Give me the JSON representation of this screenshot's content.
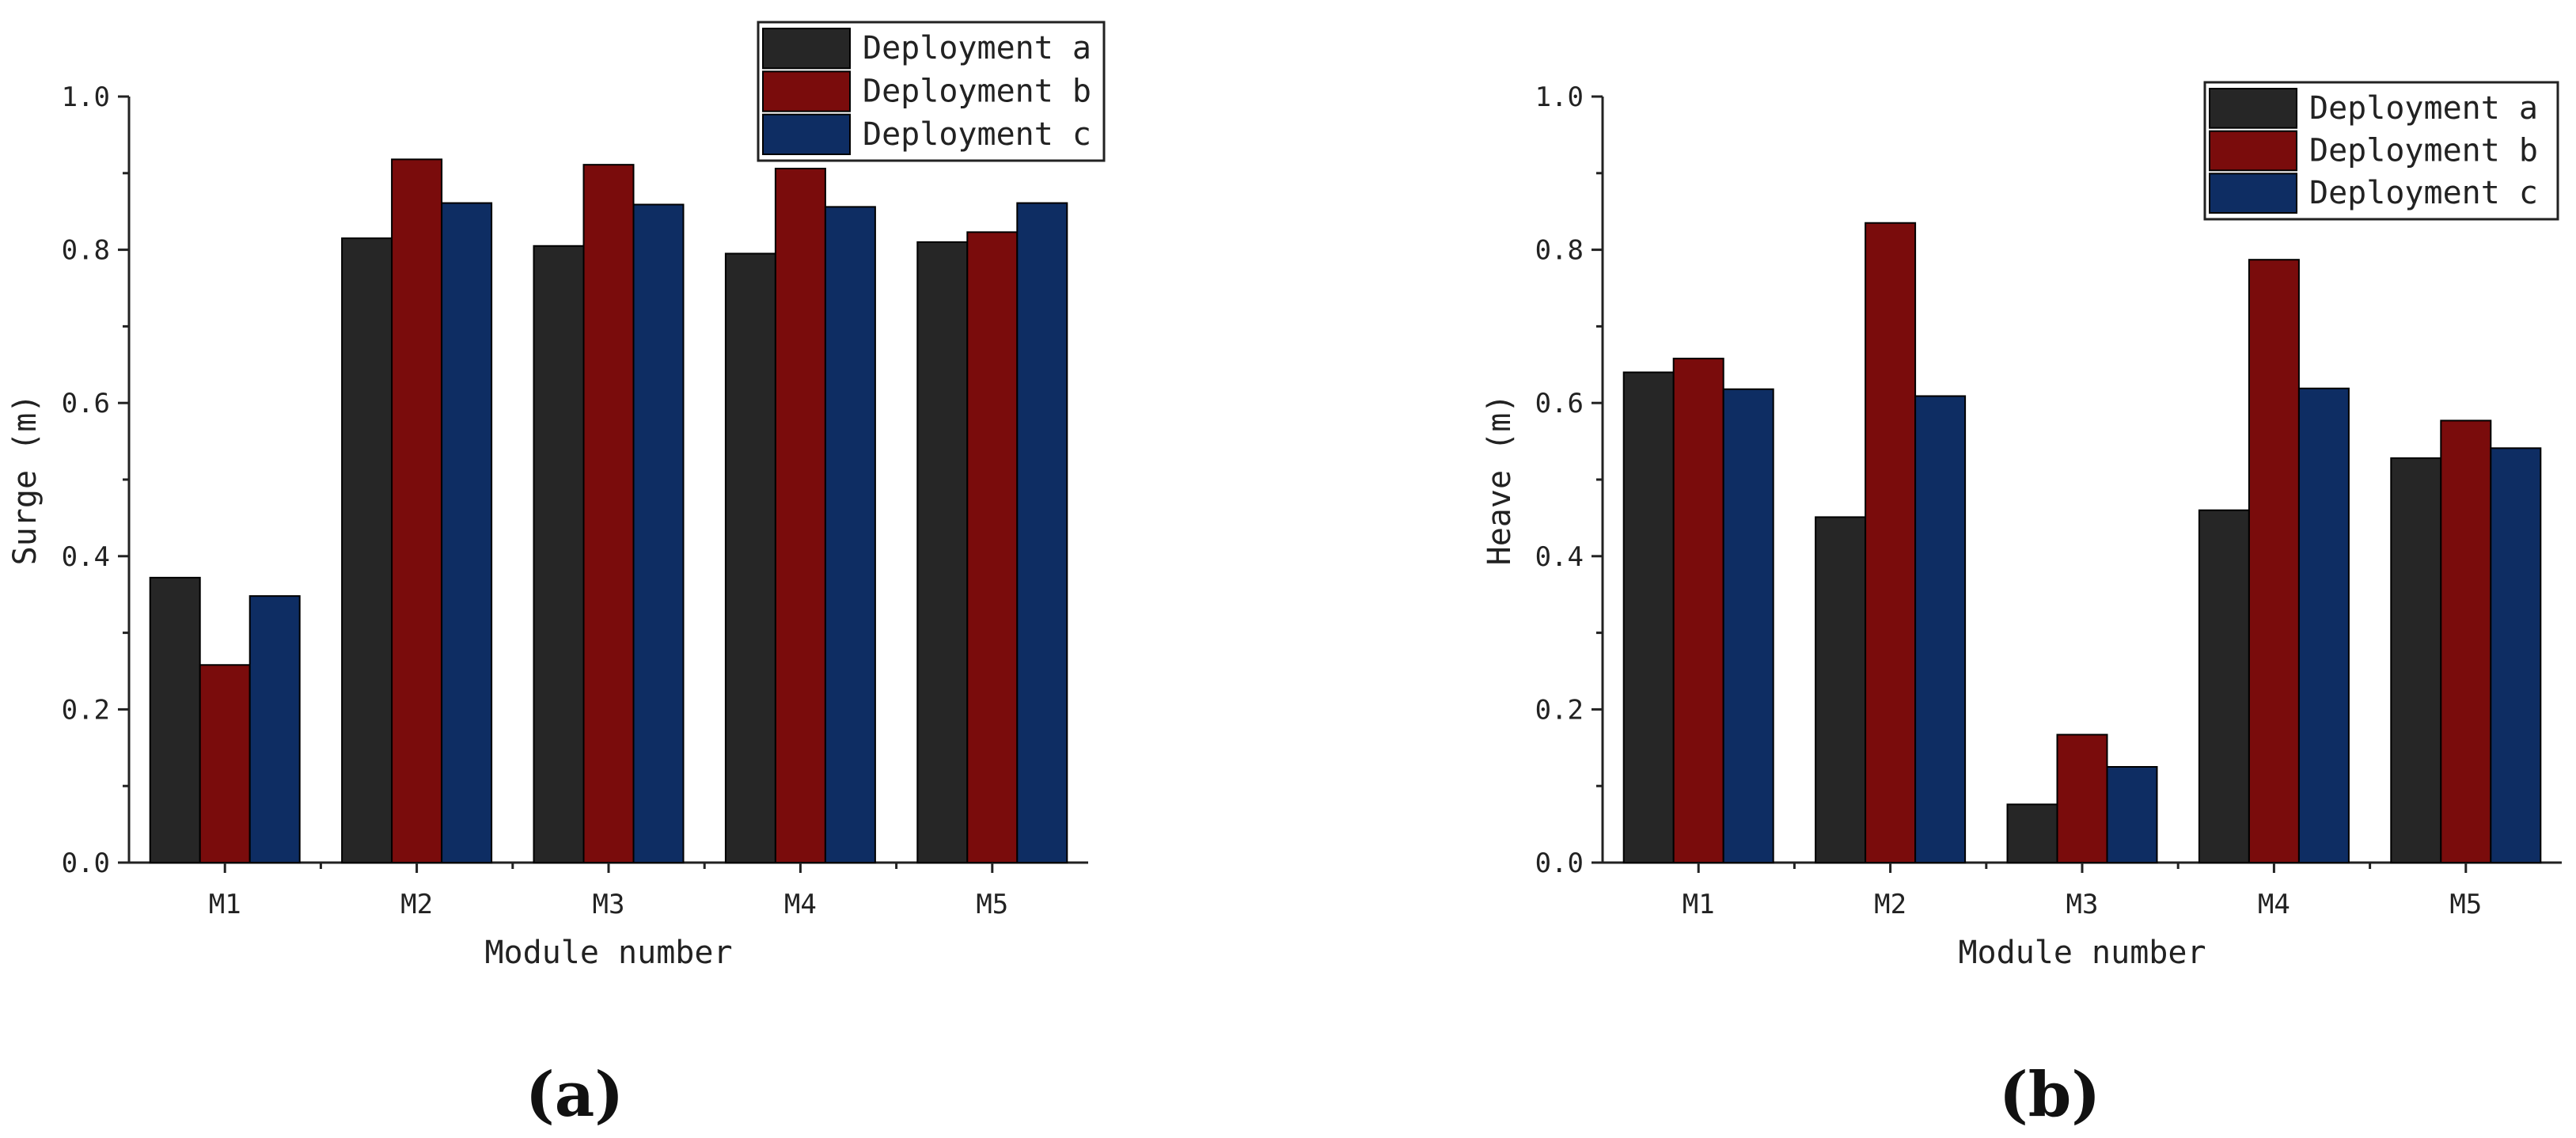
{
  "chart_data": [
    {
      "type": "bar",
      "panel_label": "(a)",
      "title": "",
      "xlabel": "Module number",
      "ylabel": "Surge (m)",
      "ylim": [
        0,
        1.0
      ],
      "yticks": [
        "0.0",
        "0.2",
        "0.4",
        "0.6",
        "0.8",
        "1.0"
      ],
      "categories": [
        "M1",
        "M2",
        "M3",
        "M4",
        "M5"
      ],
      "legend_position": "top-right",
      "series": [
        {
          "name": "Deployment a",
          "color": "#262626",
          "values": [
            0.372,
            0.815,
            0.805,
            0.795,
            0.81
          ]
        },
        {
          "name": "Deployment b",
          "color": "#7a0c0c",
          "values": [
            0.258,
            0.918,
            0.911,
            0.906,
            0.823
          ]
        },
        {
          "name": "Deployment c",
          "color": "#0e2d63",
          "values": [
            0.348,
            0.861,
            0.859,
            0.856,
            0.861
          ]
        }
      ]
    },
    {
      "type": "bar",
      "panel_label": "(b)",
      "title": "",
      "xlabel": "Module number",
      "ylabel": "Heave (m)",
      "ylim": [
        0,
        1.0
      ],
      "yticks": [
        "0.0",
        "0.2",
        "0.4",
        "0.6",
        "0.8",
        "1.0"
      ],
      "categories": [
        "M1",
        "M2",
        "M3",
        "M4",
        "M5"
      ],
      "legend_position": "top-right",
      "series": [
        {
          "name": "Deployment a",
          "color": "#262626",
          "values": [
            0.64,
            0.451,
            0.076,
            0.46,
            0.528
          ]
        },
        {
          "name": "Deployment b",
          "color": "#7a0c0c",
          "values": [
            0.658,
            0.835,
            0.167,
            0.787,
            0.577
          ]
        },
        {
          "name": "Deployment c",
          "color": "#0e2d63",
          "values": [
            0.618,
            0.609,
            0.125,
            0.619,
            0.541
          ]
        }
      ]
    }
  ]
}
